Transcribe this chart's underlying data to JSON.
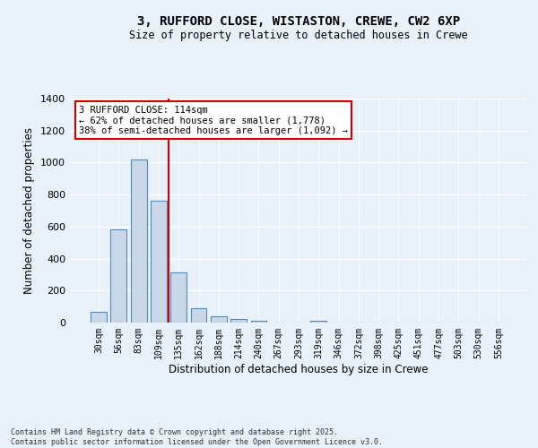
{
  "title_line1": "3, RUFFORD CLOSE, WISTASTON, CREWE, CW2 6XP",
  "title_line2": "Size of property relative to detached houses in Crewe",
  "xlabel": "Distribution of detached houses by size in Crewe",
  "ylabel": "Number of detached properties",
  "categories": [
    "30sqm",
    "56sqm",
    "83sqm",
    "109sqm",
    "135sqm",
    "162sqm",
    "188sqm",
    "214sqm",
    "240sqm",
    "267sqm",
    "293sqm",
    "319sqm",
    "346sqm",
    "372sqm",
    "398sqm",
    "425sqm",
    "451sqm",
    "477sqm",
    "503sqm",
    "530sqm",
    "556sqm"
  ],
  "values": [
    65,
    580,
    1020,
    760,
    315,
    90,
    38,
    22,
    13,
    0,
    0,
    13,
    0,
    0,
    0,
    0,
    0,
    0,
    0,
    0,
    0
  ],
  "bar_color": "#c8d8e8",
  "bar_edge_color": "#5588bb",
  "annotation_text": "3 RUFFORD CLOSE: 114sqm\n← 62% of detached houses are smaller (1,778)\n38% of semi-detached houses are larger (1,092) →",
  "annotation_box_color": "#ffffff",
  "annotation_box_edge_color": "#cc0000",
  "red_line_color": "#cc0000",
  "background_color": "#e8f0f8",
  "grid_color": "#ffffff",
  "footer_text": "Contains HM Land Registry data © Crown copyright and database right 2025.\nContains public sector information licensed under the Open Government Licence v3.0.",
  "ylim": [
    0,
    1400
  ],
  "yticks": [
    0,
    200,
    400,
    600,
    800,
    1000,
    1200,
    1400
  ]
}
